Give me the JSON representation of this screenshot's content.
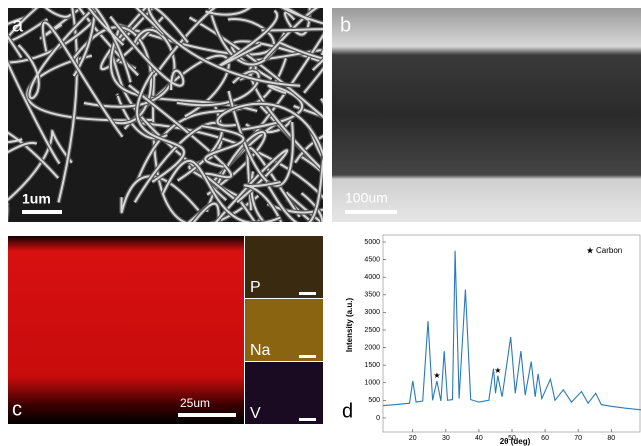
{
  "panels": {
    "a": {
      "letter": "a",
      "scale": "1um"
    },
    "b": {
      "letter": "b",
      "scale": "100um"
    },
    "c": {
      "letter": "c",
      "scale": "25um",
      "elements": [
        "P",
        "Na",
        "V"
      ]
    },
    "d": {
      "letter": "d"
    }
  },
  "chart_data": {
    "type": "line",
    "xlabel": "2θ (deg)",
    "ylabel": "Intensity (a.u.)",
    "legend": "Carbon",
    "color": "#2a7ab8",
    "x": [
      11,
      15,
      19,
      20,
      21,
      23,
      24.6,
      26,
      27.3,
      28.5,
      29.5,
      30.5,
      32,
      32.8,
      34,
      35.9,
      37.5,
      40,
      43,
      44.4,
      45,
      45.7,
      47,
      49.6,
      51,
      52.7,
      54,
      55.8,
      57,
      57.9,
      59,
      61.6,
      63,
      65.5,
      68,
      71,
      73,
      75.3,
      77,
      80,
      84,
      89
    ],
    "values": [
      350,
      380,
      420,
      1050,
      450,
      480,
      2750,
      500,
      1050,
      480,
      1900,
      500,
      520,
      4750,
      550,
      3650,
      520,
      450,
      500,
      1400,
      700,
      1200,
      600,
      2300,
      700,
      1900,
      650,
      1600,
      600,
      1250,
      550,
      1100,
      500,
      800,
      450,
      750,
      420,
      700,
      380,
      330,
      280,
      230
    ],
    "xlim": [
      11,
      89
    ],
    "ylim": [
      -400,
      5200
    ],
    "xticks": [
      20,
      30,
      40,
      50,
      60,
      70,
      80
    ],
    "yticks": [
      0,
      500,
      1000,
      1500,
      2000,
      2500,
      3000,
      3500,
      4000,
      4500,
      5000
    ]
  }
}
